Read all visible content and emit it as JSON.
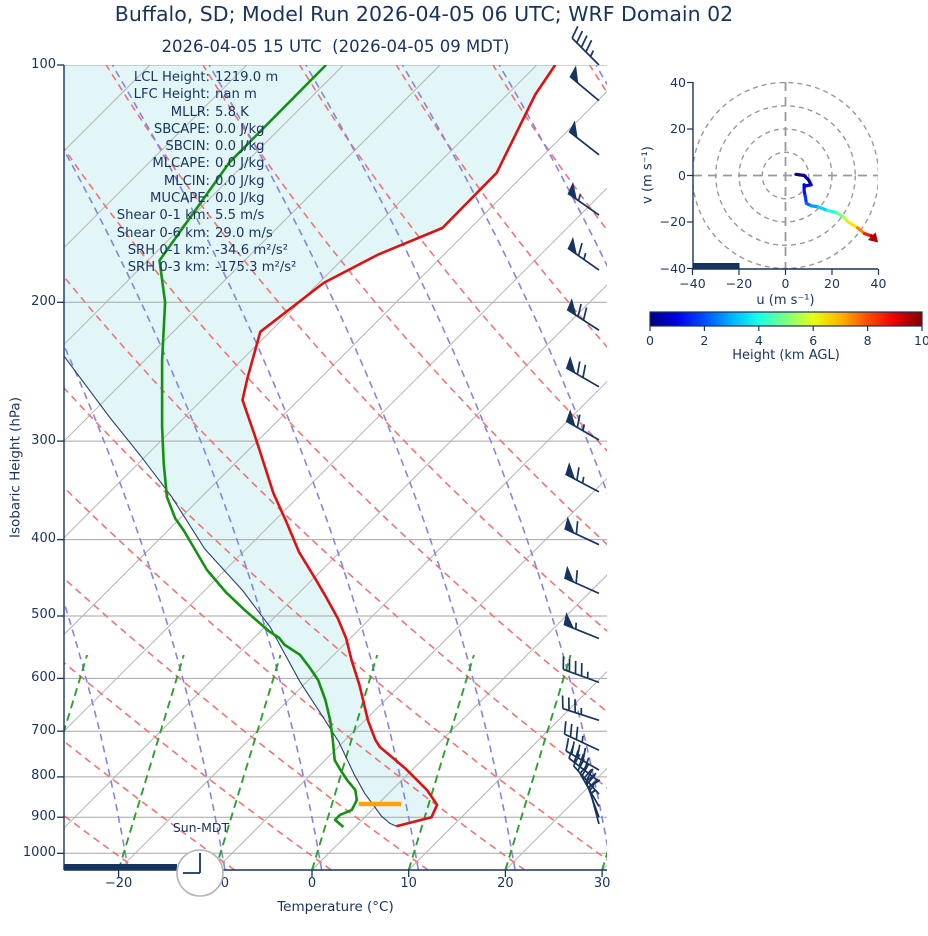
{
  "colors": {
    "navy": "#17335f",
    "temp_red": "#e01010",
    "dew_green": "#129112",
    "fill_cyan": "#e2f6f7",
    "dry_adiabat": "#ef7474",
    "moist_adiabat": "#8585e0",
    "mixing_ratio": "#2f9e2f",
    "isotherm_gray": "#b3b3b3",
    "pressure_gray": "#a6a6a6",
    "lcl_orange": "#ffa10a",
    "hodo_gray": "#999999"
  },
  "chart_data": {
    "type": "skewt-logp-sounding-with-hodograph",
    "skewt": {
      "title": "Buffalo, SD; Model Run 2026-04-05 06 UTC; WRF Domain 02",
      "subtitle": "2026-04-05 15 UTC  (2026-04-05 09 MDT)",
      "xlabel": "Temperature (°C)",
      "ylabel": "Isobaric Height (hPa)",
      "temp_ticks": [
        -20,
        -10,
        0,
        10,
        20,
        30
      ],
      "pressure_ticks": [
        100,
        200,
        300,
        400,
        500,
        600,
        700,
        800,
        900,
        1000
      ],
      "xlim": [
        -25.6,
        30.5
      ],
      "plim": [
        100,
        1051
      ],
      "temperature_profile": [
        {
          "p": 100,
          "t": -58.1
        },
        {
          "p": 109,
          "t": -57.1
        },
        {
          "p": 137,
          "t": -53.0
        },
        {
          "p": 161,
          "t": -52.9
        },
        {
          "p": 174,
          "t": -56.8
        },
        {
          "p": 189,
          "t": -59.5
        },
        {
          "p": 218,
          "t": -61.0
        },
        {
          "p": 250,
          "t": -57.5
        },
        {
          "p": 266,
          "t": -55.8
        },
        {
          "p": 293,
          "t": -51.2
        },
        {
          "p": 305,
          "t": -49.3
        },
        {
          "p": 349,
          "t": -43.0
        },
        {
          "p": 381,
          "t": -38.5
        },
        {
          "p": 415,
          "t": -34.2
        },
        {
          "p": 449,
          "t": -29.7
        },
        {
          "p": 472,
          "t": -26.9
        },
        {
          "p": 504,
          "t": -23.3
        },
        {
          "p": 534,
          "t": -20.4
        },
        {
          "p": 569,
          "t": -17.6
        },
        {
          "p": 612,
          "t": -14.2
        },
        {
          "p": 639,
          "t": -12.3
        },
        {
          "p": 678,
          "t": -9.7
        },
        {
          "p": 718,
          "t": -6.9
        },
        {
          "p": 733,
          "t": -5.7
        },
        {
          "p": 780,
          "t": -0.9
        },
        {
          "p": 831,
          "t": 3.6
        },
        {
          "p": 868,
          "t": 6.2
        },
        {
          "p": 900,
          "t": 6.9
        },
        {
          "p": 924,
          "t": 4.2
        }
      ],
      "dewpoint_profile": [
        {
          "p": 100,
          "t": -81.8
        },
        {
          "p": 133,
          "t": -81.7
        },
        {
          "p": 177,
          "t": -78.8
        },
        {
          "p": 200,
          "t": -73.9
        },
        {
          "p": 237,
          "t": -68.2
        },
        {
          "p": 288,
          "t": -61.3
        },
        {
          "p": 320,
          "t": -57.4
        },
        {
          "p": 353,
          "t": -53.6
        },
        {
          "p": 376,
          "t": -50.5
        },
        {
          "p": 390,
          "t": -48.3
        },
        {
          "p": 437,
          "t": -41.9
        },
        {
          "p": 466,
          "t": -37.7
        },
        {
          "p": 491,
          "t": -33.9
        },
        {
          "p": 523,
          "t": -29.1
        },
        {
          "p": 533,
          "t": -27.4
        },
        {
          "p": 544,
          "t": -26.1
        },
        {
          "p": 560,
          "t": -23.5
        },
        {
          "p": 582,
          "t": -21.1
        },
        {
          "p": 603,
          "t": -19.0
        },
        {
          "p": 639,
          "t": -16.2
        },
        {
          "p": 678,
          "t": -13.6
        },
        {
          "p": 718,
          "t": -11.3
        },
        {
          "p": 762,
          "t": -9.0
        },
        {
          "p": 784,
          "t": -7.4
        },
        {
          "p": 807,
          "t": -5.7
        },
        {
          "p": 831,
          "t": -3.8
        },
        {
          "p": 856,
          "t": -2.6
        },
        {
          "p": 881,
          "t": -2.1
        },
        {
          "p": 894,
          "t": -2.8
        },
        {
          "p": 907,
          "t": -2.8
        },
        {
          "p": 926,
          "t": -1.2
        }
      ],
      "parcel_profile": [
        {
          "p": 234,
          "t": -78.8
        },
        {
          "p": 280,
          "t": -67.7
        },
        {
          "p": 313,
          "t": -60.6
        },
        {
          "p": 353,
          "t": -53.1
        },
        {
          "p": 411,
          "t": -44.3
        },
        {
          "p": 464,
          "t": -36.1
        },
        {
          "p": 516,
          "t": -29.5
        },
        {
          "p": 606,
          "t": -20.7
        },
        {
          "p": 668,
          "t": -15.0
        },
        {
          "p": 722,
          "t": -10.5
        },
        {
          "p": 796,
          "t": -5.4
        },
        {
          "p": 839,
          "t": -2.5
        },
        {
          "p": 871,
          "t": -0.2
        },
        {
          "p": 897,
          "t": 1.6
        },
        {
          "p": 916,
          "t": 3.2
        },
        {
          "p": 924,
          "t": 4.2
        }
      ],
      "lcl_marker": {
        "p": 866,
        "t1": -2.0,
        "t2": 2.4
      },
      "winds": [
        {
          "p": 100,
          "kt": 45,
          "dir": 315
        },
        {
          "p": 111,
          "kt": 50,
          "dir": 310
        },
        {
          "p": 130,
          "kt": 50,
          "dir": 308
        },
        {
          "p": 155,
          "kt": 55,
          "dir": 305
        },
        {
          "p": 182,
          "kt": 65,
          "dir": 305
        },
        {
          "p": 217,
          "kt": 70,
          "dir": 303
        },
        {
          "p": 256,
          "kt": 70,
          "dir": 300
        },
        {
          "p": 299,
          "kt": 65,
          "dir": 300
        },
        {
          "p": 348,
          "kt": 65,
          "dir": 298
        },
        {
          "p": 406,
          "kt": 60,
          "dir": 295
        },
        {
          "p": 468,
          "kt": 60,
          "dir": 294
        },
        {
          "p": 534,
          "kt": 55,
          "dir": 292
        },
        {
          "p": 607,
          "kt": 45,
          "dir": 290
        },
        {
          "p": 678,
          "kt": 35,
          "dir": 288
        },
        {
          "p": 740,
          "kt": 35,
          "dir": 295
        },
        {
          "p": 784,
          "kt": 40,
          "dir": 300
        },
        {
          "p": 811,
          "kt": 40,
          "dir": 308
        },
        {
          "p": 841,
          "kt": 40,
          "dir": 318
        },
        {
          "p": 872,
          "kt": 35,
          "dir": 330
        },
        {
          "p": 900,
          "kt": 25,
          "dir": 340
        },
        {
          "p": 918,
          "kt": 15,
          "dir": 345
        }
      ],
      "stats": [
        {
          "label": "LCL Height:",
          "value": "1219.0 m"
        },
        {
          "label": "LFC Height:",
          "value": "nan m"
        },
        {
          "label": "MLLR:",
          "value": "5.8 K"
        },
        {
          "label": "SBCAPE:",
          "value": "0.0 J/kg"
        },
        {
          "label": "SBCIN:",
          "value": "0.0 J/kg"
        },
        {
          "label": "MLCAPE:",
          "value": "0.0 J/kg"
        },
        {
          "label": "MLCIN:",
          "value": "0.0 J/kg"
        },
        {
          "label": "MUCAPE:",
          "value": "0.0 J/kg"
        },
        {
          "label": "Shear 0-1 km:",
          "value": "5.5 m/s"
        },
        {
          "label": "Shear 0-6 km:",
          "value": "29.0 m/s"
        },
        {
          "label": "SRH 0-1 km:",
          "value": "-34.6 m²/s²"
        },
        {
          "label": "SRH 0-3 km:",
          "value": "-175.3 m²/s²"
        }
      ],
      "sun_clock": {
        "label": "Sun-MDT",
        "time_shown": "9:00"
      }
    },
    "hodograph": {
      "xlabel": "u (m s⁻¹)",
      "ylabel": "v (m s⁻¹)",
      "u_ticks": [
        -40,
        -20,
        0,
        20,
        40
      ],
      "v_ticks": [
        -40,
        -20,
        0,
        20,
        40
      ],
      "ring_radii": [
        10,
        20,
        30,
        40
      ],
      "trace": [
        {
          "u": 4.5,
          "v": 0.5,
          "h": 0
        },
        {
          "u": 8,
          "v": 0,
          "h": 0.2
        },
        {
          "u": 10,
          "v": -2,
          "h": 0.4
        },
        {
          "u": 11,
          "v": -4,
          "h": 0.6
        },
        {
          "u": 8.5,
          "v": -4.5,
          "h": 0.8
        },
        {
          "u": 8,
          "v": -4,
          "h": 0.9
        },
        {
          "u": 8,
          "v": -6.5,
          "h": 1.2
        },
        {
          "u": 8.5,
          "v": -9,
          "h": 1.6
        },
        {
          "u": 9,
          "v": -12,
          "h": 2
        },
        {
          "u": 11,
          "v": -13,
          "h": 2.5
        },
        {
          "u": 14,
          "v": -13.5,
          "h": 3
        },
        {
          "u": 18,
          "v": -15,
          "h": 3.6
        },
        {
          "u": 22,
          "v": -16,
          "h": 4.4
        },
        {
          "u": 25,
          "v": -18,
          "h": 5.2
        },
        {
          "u": 27,
          "v": -20,
          "h": 6
        },
        {
          "u": 31,
          "v": -22.5,
          "h": 7
        },
        {
          "u": 34,
          "v": -25,
          "h": 8
        },
        {
          "u": 37,
          "v": -26,
          "h": 9
        },
        {
          "u": 38,
          "v": -27,
          "h": 10
        }
      ]
    },
    "colorbar": {
      "label": "Height (km AGL)",
      "ticks": [
        0,
        2,
        4,
        6,
        8,
        10
      ],
      "range": [
        0,
        10
      ],
      "colormap": "jet"
    }
  }
}
